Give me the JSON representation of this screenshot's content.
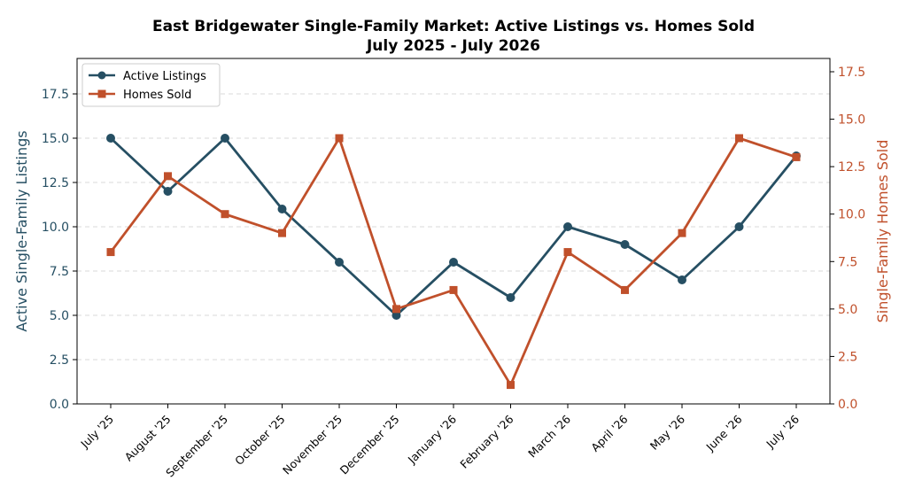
{
  "chart_data": {
    "type": "line",
    "title": "East Bridgewater Single-Family Market: Active Listings vs. Homes Sold",
    "subtitle": "July 2025 - July 2026",
    "categories": [
      "July '25",
      "August '25",
      "September '25",
      "October '25",
      "November '25",
      "December '25",
      "January '26",
      "February '26",
      "March '26",
      "April '26",
      "May '26",
      "June '26",
      "July '26"
    ],
    "series": [
      {
        "name": "Active Listings",
        "axis": "left",
        "marker": "circle",
        "color": "#264f63",
        "values": [
          15,
          12,
          15,
          11,
          8,
          5,
          8,
          6,
          10,
          9,
          7,
          10,
          14
        ]
      },
      {
        "name": "Homes Sold",
        "axis": "right",
        "marker": "square",
        "color": "#c0502b",
        "values": [
          8,
          12,
          10,
          9,
          14,
          5,
          6,
          1,
          8,
          6,
          9,
          14,
          13
        ]
      }
    ],
    "ylabel_left": "Active Single-Family Listings",
    "ylabel_right": "Single-Family Homes Sold",
    "ylim_left": [
      0,
      19.5
    ],
    "ylim_right": [
      0,
      18.2
    ],
    "yticks_left": [
      "0.0",
      "2.5",
      "5.0",
      "7.5",
      "10.0",
      "12.5",
      "15.0",
      "17.5"
    ],
    "yticks_right": [
      "0.0",
      "2.5",
      "5.0",
      "7.5",
      "10.0",
      "12.5",
      "15.0",
      "17.5"
    ],
    "grid": "horizontal dashed",
    "legend_position": "top-left"
  }
}
